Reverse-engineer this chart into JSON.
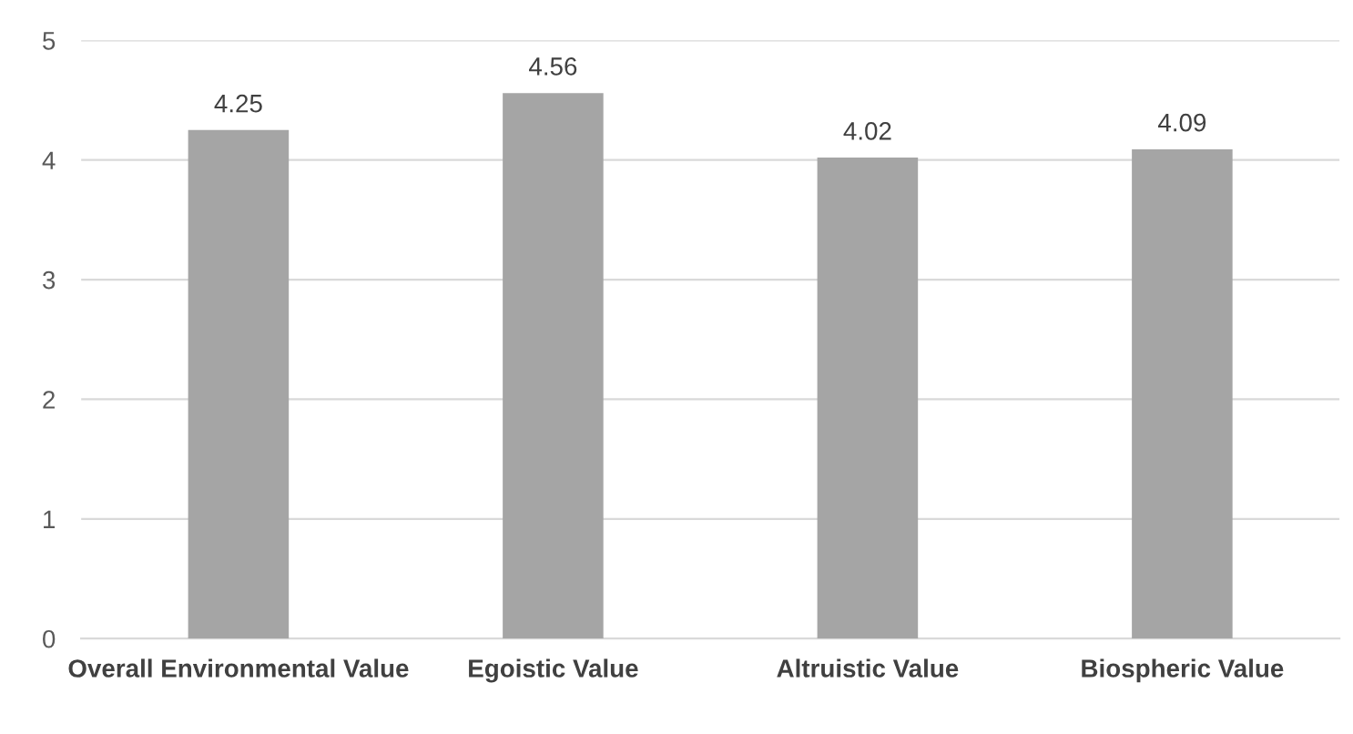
{
  "chart_data": {
    "type": "bar",
    "categories": [
      "Overall Environmental Value",
      "Egoistic Value",
      "Altruistic Value",
      "Biospheric Value"
    ],
    "values": [
      4.25,
      4.56,
      4.02,
      4.09
    ],
    "color": "#a5a5a5",
    "ylim": [
      0,
      5
    ],
    "yticks": [
      0,
      1,
      2,
      3,
      4,
      5
    ],
    "grid": "y",
    "data_labels": true
  }
}
